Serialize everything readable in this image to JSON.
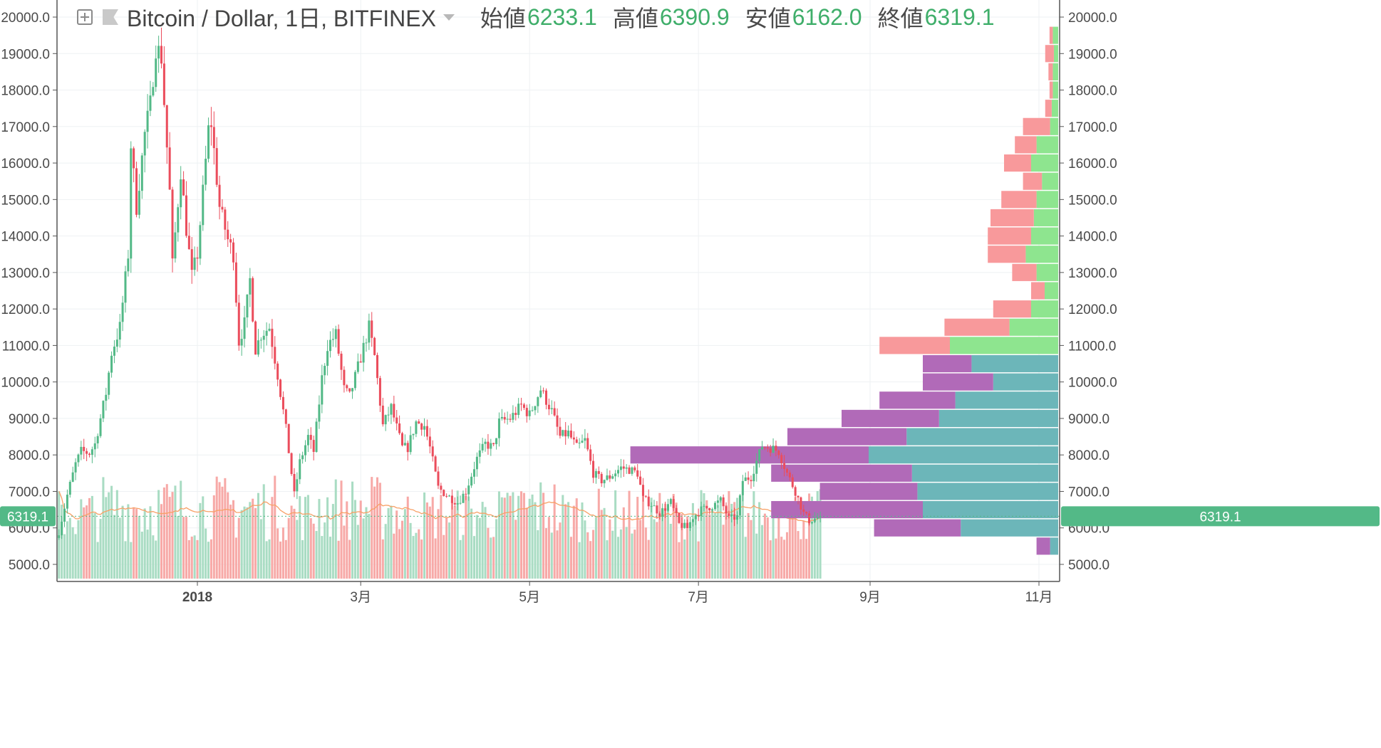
{
  "header": {
    "symbol": "Bitcoin / Dollar, 1日, BITFINEX",
    "ohlc": [
      {
        "label": "始値",
        "value": "6233.1"
      },
      {
        "label": "高値",
        "value": "6390.9"
      },
      {
        "label": "安値",
        "value": "6162.0"
      },
      {
        "label": "終値",
        "value": "6319.1"
      }
    ],
    "icons": [
      "expand-icon",
      "flag-icon",
      "caret-down-icon"
    ]
  },
  "price_axis": {
    "labels": [
      "20000.0",
      "19000.0",
      "18000.0",
      "17000.0",
      "16000.0",
      "15000.0",
      "14000.0",
      "13000.0",
      "12000.0",
      "11000.0",
      "10000.0",
      "9000.0",
      "8000.0",
      "7000.0",
      "6000.0",
      "5000.0"
    ]
  },
  "time_axis": {
    "labels": [
      "2018",
      "3月",
      "5月",
      "7月",
      "9月",
      "11月"
    ]
  },
  "last_price": {
    "label": "6319.1",
    "value": 6319.1
  },
  "colors": {
    "up": "#53b987",
    "down": "#eb4d5c",
    "vol_up": "#a9dcc3",
    "vol_down": "#f7a9a7",
    "ma": "#f7a066",
    "vp_up_green": "#8ee58f",
    "vp_down_red": "#f8999b",
    "vp_up_teal": "#6cb6b9",
    "vp_down_purple": "#b16ab8",
    "grid": "#eef1f3",
    "axis_text": "#4a4a4a",
    "badge": "#53b987"
  },
  "chart_data": {
    "type": "candlestick",
    "series_name": "Bitcoin / Dollar, 1日, BITFINEX",
    "x_axis_type": "date",
    "x_range": [
      "2017-11-11",
      "2018-11-30"
    ],
    "ylim": [
      4500,
      20300
    ],
    "grid": true,
    "legend": "none",
    "last_close": 6319.1,
    "ohlc_anchors": [
      [
        "2017-11-12",
        5900
      ],
      [
        "2017-11-15",
        6900
      ],
      [
        "2017-11-18",
        7750
      ],
      [
        "2017-11-20",
        8100
      ],
      [
        "2017-11-23",
        8050
      ],
      [
        "2017-11-25",
        8300
      ],
      [
        "2017-11-29",
        9700
      ],
      [
        "2017-12-01",
        10800
      ],
      [
        "2017-12-04",
        11500
      ],
      [
        "2017-12-07",
        13500
      ],
      [
        "2017-12-08",
        16500
      ],
      [
        "2017-12-10",
        14800
      ],
      [
        "2017-12-13",
        16800
      ],
      [
        "2017-12-15",
        17600
      ],
      [
        "2017-12-17",
        19200
      ],
      [
        "2017-12-19",
        18900
      ],
      [
        "2017-12-22",
        15200
      ],
      [
        "2017-12-23",
        13200
      ],
      [
        "2017-12-26",
        15800
      ],
      [
        "2017-12-28",
        14200
      ],
      [
        "2017-12-30",
        12900
      ],
      [
        "2018-01-01",
        13500
      ],
      [
        "2018-01-05",
        16900
      ],
      [
        "2018-01-06",
        17100
      ],
      [
        "2018-01-09",
        14800
      ],
      [
        "2018-01-12",
        13900
      ],
      [
        "2018-01-14",
        13500
      ],
      [
        "2018-01-16",
        11100
      ],
      [
        "2018-01-18",
        11600
      ],
      [
        "2018-01-20",
        12800
      ],
      [
        "2018-01-22",
        10900
      ],
      [
        "2018-01-24",
        11300
      ],
      [
        "2018-01-27",
        11500
      ],
      [
        "2018-01-30",
        10200
      ],
      [
        "2018-02-02",
        8700
      ],
      [
        "2018-02-05",
        6900
      ],
      [
        "2018-02-07",
        7800
      ],
      [
        "2018-02-10",
        8500
      ],
      [
        "2018-02-12",
        8100
      ],
      [
        "2018-02-15",
        10100
      ],
      [
        "2018-02-17",
        11000
      ],
      [
        "2018-02-20",
        11300
      ],
      [
        "2018-02-23",
        9800
      ],
      [
        "2018-02-25",
        9600
      ],
      [
        "2018-02-28",
        10400
      ],
      [
        "2018-03-04",
        11500
      ],
      [
        "2018-03-06",
        10700
      ],
      [
        "2018-03-09",
        8800
      ],
      [
        "2018-03-12",
        9300
      ],
      [
        "2018-03-16",
        8200
      ],
      [
        "2018-03-18",
        8200
      ],
      [
        "2018-03-21",
        8900
      ],
      [
        "2018-03-24",
        8800
      ],
      [
        "2018-03-26",
        8200
      ],
      [
        "2018-03-29",
        7100
      ],
      [
        "2018-04-01",
        6900
      ],
      [
        "2018-04-05",
        6700
      ],
      [
        "2018-04-08",
        7000
      ],
      [
        "2018-04-12",
        7900
      ],
      [
        "2018-04-15",
        8300
      ],
      [
        "2018-04-18",
        8200
      ],
      [
        "2018-04-20",
        8900
      ],
      [
        "2018-04-24",
        9000
      ],
      [
        "2018-04-28",
        9350
      ],
      [
        "2018-05-01",
        9100
      ],
      [
        "2018-05-05",
        9800
      ],
      [
        "2018-05-07",
        9500
      ],
      [
        "2018-05-09",
        9200
      ],
      [
        "2018-05-12",
        8500
      ],
      [
        "2018-05-15",
        8600
      ],
      [
        "2018-05-18",
        8200
      ],
      [
        "2018-05-21",
        8400
      ],
      [
        "2018-05-24",
        7500
      ],
      [
        "2018-05-27",
        7300
      ],
      [
        "2018-05-30",
        7400
      ],
      [
        "2018-06-03",
        7650
      ],
      [
        "2018-06-06",
        7600
      ],
      [
        "2018-06-09",
        7500
      ],
      [
        "2018-06-11",
        6800
      ],
      [
        "2018-06-14",
        6650
      ],
      [
        "2018-06-17",
        6400
      ],
      [
        "2018-06-21",
        6700
      ],
      [
        "2018-06-24",
        6100
      ],
      [
        "2018-06-27",
        6000
      ],
      [
        "2018-06-29",
        6300
      ],
      [
        "2018-07-02",
        6500
      ],
      [
        "2018-07-06",
        6600
      ],
      [
        "2018-07-09",
        6750
      ],
      [
        "2018-07-12",
        6250
      ],
      [
        "2018-07-15",
        6300
      ],
      [
        "2018-07-17",
        7300
      ],
      [
        "2018-07-20",
        7400
      ],
      [
        "2018-07-24",
        8250
      ],
      [
        "2018-07-27",
        8200
      ],
      [
        "2018-07-30",
        8100
      ],
      [
        "2018-08-02",
        7500
      ],
      [
        "2018-08-05",
        7000
      ],
      [
        "2018-08-08",
        6400
      ],
      [
        "2018-08-10",
        6200
      ],
      [
        "2018-08-12",
        6250
      ],
      [
        "2018-08-14",
        6319.1
      ]
    ],
    "volume_profile": [
      {
        "price": 19500,
        "up": 1,
        "down": 0.6
      },
      {
        "price": 19000,
        "up": 0.8,
        "down": 1.6
      },
      {
        "price": 18500,
        "up": 1,
        "down": 0.8
      },
      {
        "price": 18000,
        "up": 1,
        "down": 0.6
      },
      {
        "price": 17500,
        "up": 1.2,
        "down": 1.2
      },
      {
        "price": 17000,
        "up": 1.5,
        "down": 5
      },
      {
        "price": 16500,
        "up": 4,
        "down": 4
      },
      {
        "price": 16000,
        "up": 5,
        "down": 5
      },
      {
        "price": 15500,
        "up": 3,
        "down": 3.5
      },
      {
        "price": 15000,
        "up": 4,
        "down": 6.5
      },
      {
        "price": 14500,
        "up": 4.5,
        "down": 8
      },
      {
        "price": 14000,
        "up": 5,
        "down": 8
      },
      {
        "price": 13500,
        "up": 6,
        "down": 7
      },
      {
        "price": 13000,
        "up": 4,
        "down": 4.5
      },
      {
        "price": 12500,
        "up": 2.5,
        "down": 2.5
      },
      {
        "price": 12000,
        "up": 5,
        "down": 7
      },
      {
        "price": 11500,
        "up": 9,
        "down": 12
      },
      {
        "price": 11000,
        "up": 20,
        "down": 13
      },
      {
        "price": 10500,
        "up": 16,
        "down": 9
      },
      {
        "price": 10000,
        "up": 12,
        "down": 13
      },
      {
        "price": 9500,
        "up": 19,
        "down": 14
      },
      {
        "price": 9000,
        "up": 22,
        "down": 18
      },
      {
        "price": 8500,
        "up": 28,
        "down": 22
      },
      {
        "price": 8000,
        "up": 35,
        "down": 44
      },
      {
        "price": 7500,
        "up": 27,
        "down": 26
      },
      {
        "price": 7000,
        "up": 26,
        "down": 18
      },
      {
        "price": 6500,
        "up": 25,
        "down": 28
      },
      {
        "price": 6000,
        "up": 18,
        "down": 16
      },
      {
        "price": 5500,
        "up": 1.5,
        "down": 2.5
      }
    ]
  }
}
